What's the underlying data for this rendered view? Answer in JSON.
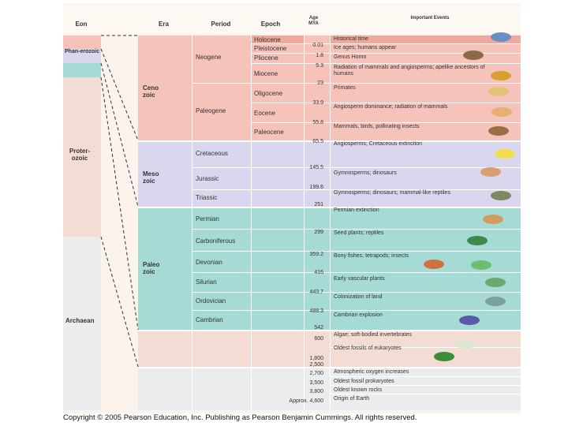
{
  "header": {
    "eon": "Eon",
    "era": "Era",
    "period": "Period",
    "epoch": "Epoch",
    "age": "Age MYA",
    "events": "Important Events"
  },
  "eons": [
    "Phan-erozoic",
    "Proter-ozoic",
    "Archaean"
  ],
  "eras": [
    "Ceno zoic",
    "Meso zoic",
    "Paleo zoic"
  ],
  "periods": [
    "Neogene",
    "Paleogene",
    "Cretaceous",
    "Jurassic",
    "Triassic",
    "Permian",
    "Carboniferous",
    "Devonian",
    "Silurian",
    "Ordovician",
    "Cambrian"
  ],
  "epochs": [
    "Holocene",
    "Pleistocene",
    "Pliocene",
    "Miocene",
    "Oligocene",
    "Eocene",
    "Paleocene"
  ],
  "ages": [
    "0.01",
    "1.8",
    "5.3",
    "23",
    "33.9",
    "55.8",
    "65.5",
    "145.5",
    "199.6",
    "251",
    "299",
    "359.2",
    "416",
    "443.7",
    "488.3",
    "542",
    "600",
    "1,800",
    "2,500",
    "2,700",
    "3,500",
    "3,800",
    "Approx. 4,600"
  ],
  "events": [
    "Historical time",
    "Ice ages; humans appear",
    "Genus Homo",
    "Radiation of mammals and angiosperms; apelike ancestors of humans",
    "Primates",
    "Angiosperm dominance; radiation of mammals",
    "Mammals, birds, pollinating insects",
    "Angiosperms; Cretaceous extinction",
    "Gymnosperms; dinosaurs",
    "Gymnosperms; dinosaurs; mammal-like reptiles",
    "Permian extinction",
    "Seed plants; reptiles",
    "Bony fishes; tetrapods; insects",
    "Early vascular plants",
    "Colonization of land",
    "Cambrian explosion",
    "Algae; soft-bodied invertebrates",
    "Oldest fossils of eukaryotes",
    "Atmospheric oxygen increases",
    "Oldest fossil prokaryotes",
    "Oldest known rocks",
    "Origin of Earth"
  ],
  "footer": "Copyright © 2005 Pearson Education, Inc. Publishing as Pearson Benjamin Cummings. All rights reserved."
}
